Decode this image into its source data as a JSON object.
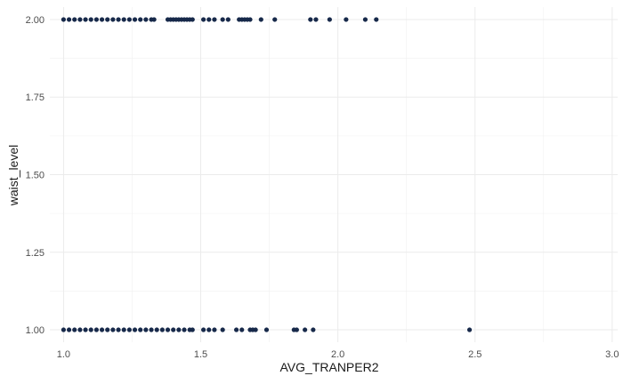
{
  "chart_data": {
    "type": "scatter",
    "title": "",
    "xlabel": "AVG_TRANPER2",
    "ylabel": "waist_level",
    "xlim": [
      0.95,
      3.02
    ],
    "ylim": [
      0.96,
      2.04
    ],
    "x_ticks": [
      1.0,
      1.5,
      2.0,
      2.5,
      3.0
    ],
    "x_tick_labels": [
      "1.0",
      "1.5",
      "2.0",
      "2.5",
      "3.0"
    ],
    "y_ticks": [
      1.0,
      1.25,
      1.5,
      1.75,
      2.0
    ],
    "y_tick_labels": [
      "1.00",
      "1.25",
      "1.50",
      "1.75",
      "2.00"
    ],
    "grid": true,
    "point_color": "#17294a",
    "series": [
      {
        "points": [
          [
            1.0,
            2.0
          ],
          [
            1.02,
            2.0
          ],
          [
            1.04,
            2.0
          ],
          [
            1.06,
            2.0
          ],
          [
            1.08,
            2.0
          ],
          [
            1.1,
            2.0
          ],
          [
            1.12,
            2.0
          ],
          [
            1.14,
            2.0
          ],
          [
            1.16,
            2.0
          ],
          [
            1.18,
            2.0
          ],
          [
            1.2,
            2.0
          ],
          [
            1.22,
            2.0
          ],
          [
            1.24,
            2.0
          ],
          [
            1.26,
            2.0
          ],
          [
            1.28,
            2.0
          ],
          [
            1.3,
            2.0
          ],
          [
            1.32,
            2.0
          ],
          [
            1.33,
            2.0
          ],
          [
            1.38,
            2.0
          ],
          [
            1.39,
            2.0
          ],
          [
            1.4,
            2.0
          ],
          [
            1.41,
            2.0
          ],
          [
            1.42,
            2.0
          ],
          [
            1.43,
            2.0
          ],
          [
            1.44,
            2.0
          ],
          [
            1.45,
            2.0
          ],
          [
            1.46,
            2.0
          ],
          [
            1.47,
            2.0
          ],
          [
            1.51,
            2.0
          ],
          [
            1.53,
            2.0
          ],
          [
            1.55,
            2.0
          ],
          [
            1.58,
            2.0
          ],
          [
            1.6,
            2.0
          ],
          [
            1.64,
            2.0
          ],
          [
            1.65,
            2.0
          ],
          [
            1.66,
            2.0
          ],
          [
            1.67,
            2.0
          ],
          [
            1.68,
            2.0
          ],
          [
            1.72,
            2.0
          ],
          [
            1.77,
            2.0
          ],
          [
            1.9,
            2.0
          ],
          [
            1.92,
            2.0
          ],
          [
            1.97,
            2.0
          ],
          [
            2.03,
            2.0
          ],
          [
            2.1,
            2.0
          ],
          [
            2.14,
            2.0
          ],
          [
            1.0,
            1.0
          ],
          [
            1.02,
            1.0
          ],
          [
            1.04,
            1.0
          ],
          [
            1.06,
            1.0
          ],
          [
            1.08,
            1.0
          ],
          [
            1.1,
            1.0
          ],
          [
            1.12,
            1.0
          ],
          [
            1.14,
            1.0
          ],
          [
            1.16,
            1.0
          ],
          [
            1.18,
            1.0
          ],
          [
            1.2,
            1.0
          ],
          [
            1.22,
            1.0
          ],
          [
            1.24,
            1.0
          ],
          [
            1.26,
            1.0
          ],
          [
            1.28,
            1.0
          ],
          [
            1.3,
            1.0
          ],
          [
            1.32,
            1.0
          ],
          [
            1.34,
            1.0
          ],
          [
            1.36,
            1.0
          ],
          [
            1.38,
            1.0
          ],
          [
            1.4,
            1.0
          ],
          [
            1.42,
            1.0
          ],
          [
            1.44,
            1.0
          ],
          [
            1.46,
            1.0
          ],
          [
            1.47,
            1.0
          ],
          [
            1.51,
            1.0
          ],
          [
            1.53,
            1.0
          ],
          [
            1.55,
            1.0
          ],
          [
            1.58,
            1.0
          ],
          [
            1.63,
            1.0
          ],
          [
            1.65,
            1.0
          ],
          [
            1.68,
            1.0
          ],
          [
            1.69,
            1.0
          ],
          [
            1.7,
            1.0
          ],
          [
            1.74,
            1.0
          ],
          [
            1.84,
            1.0
          ],
          [
            1.85,
            1.0
          ],
          [
            1.88,
            1.0
          ],
          [
            1.91,
            1.0
          ],
          [
            2.48,
            1.0
          ]
        ]
      }
    ]
  }
}
